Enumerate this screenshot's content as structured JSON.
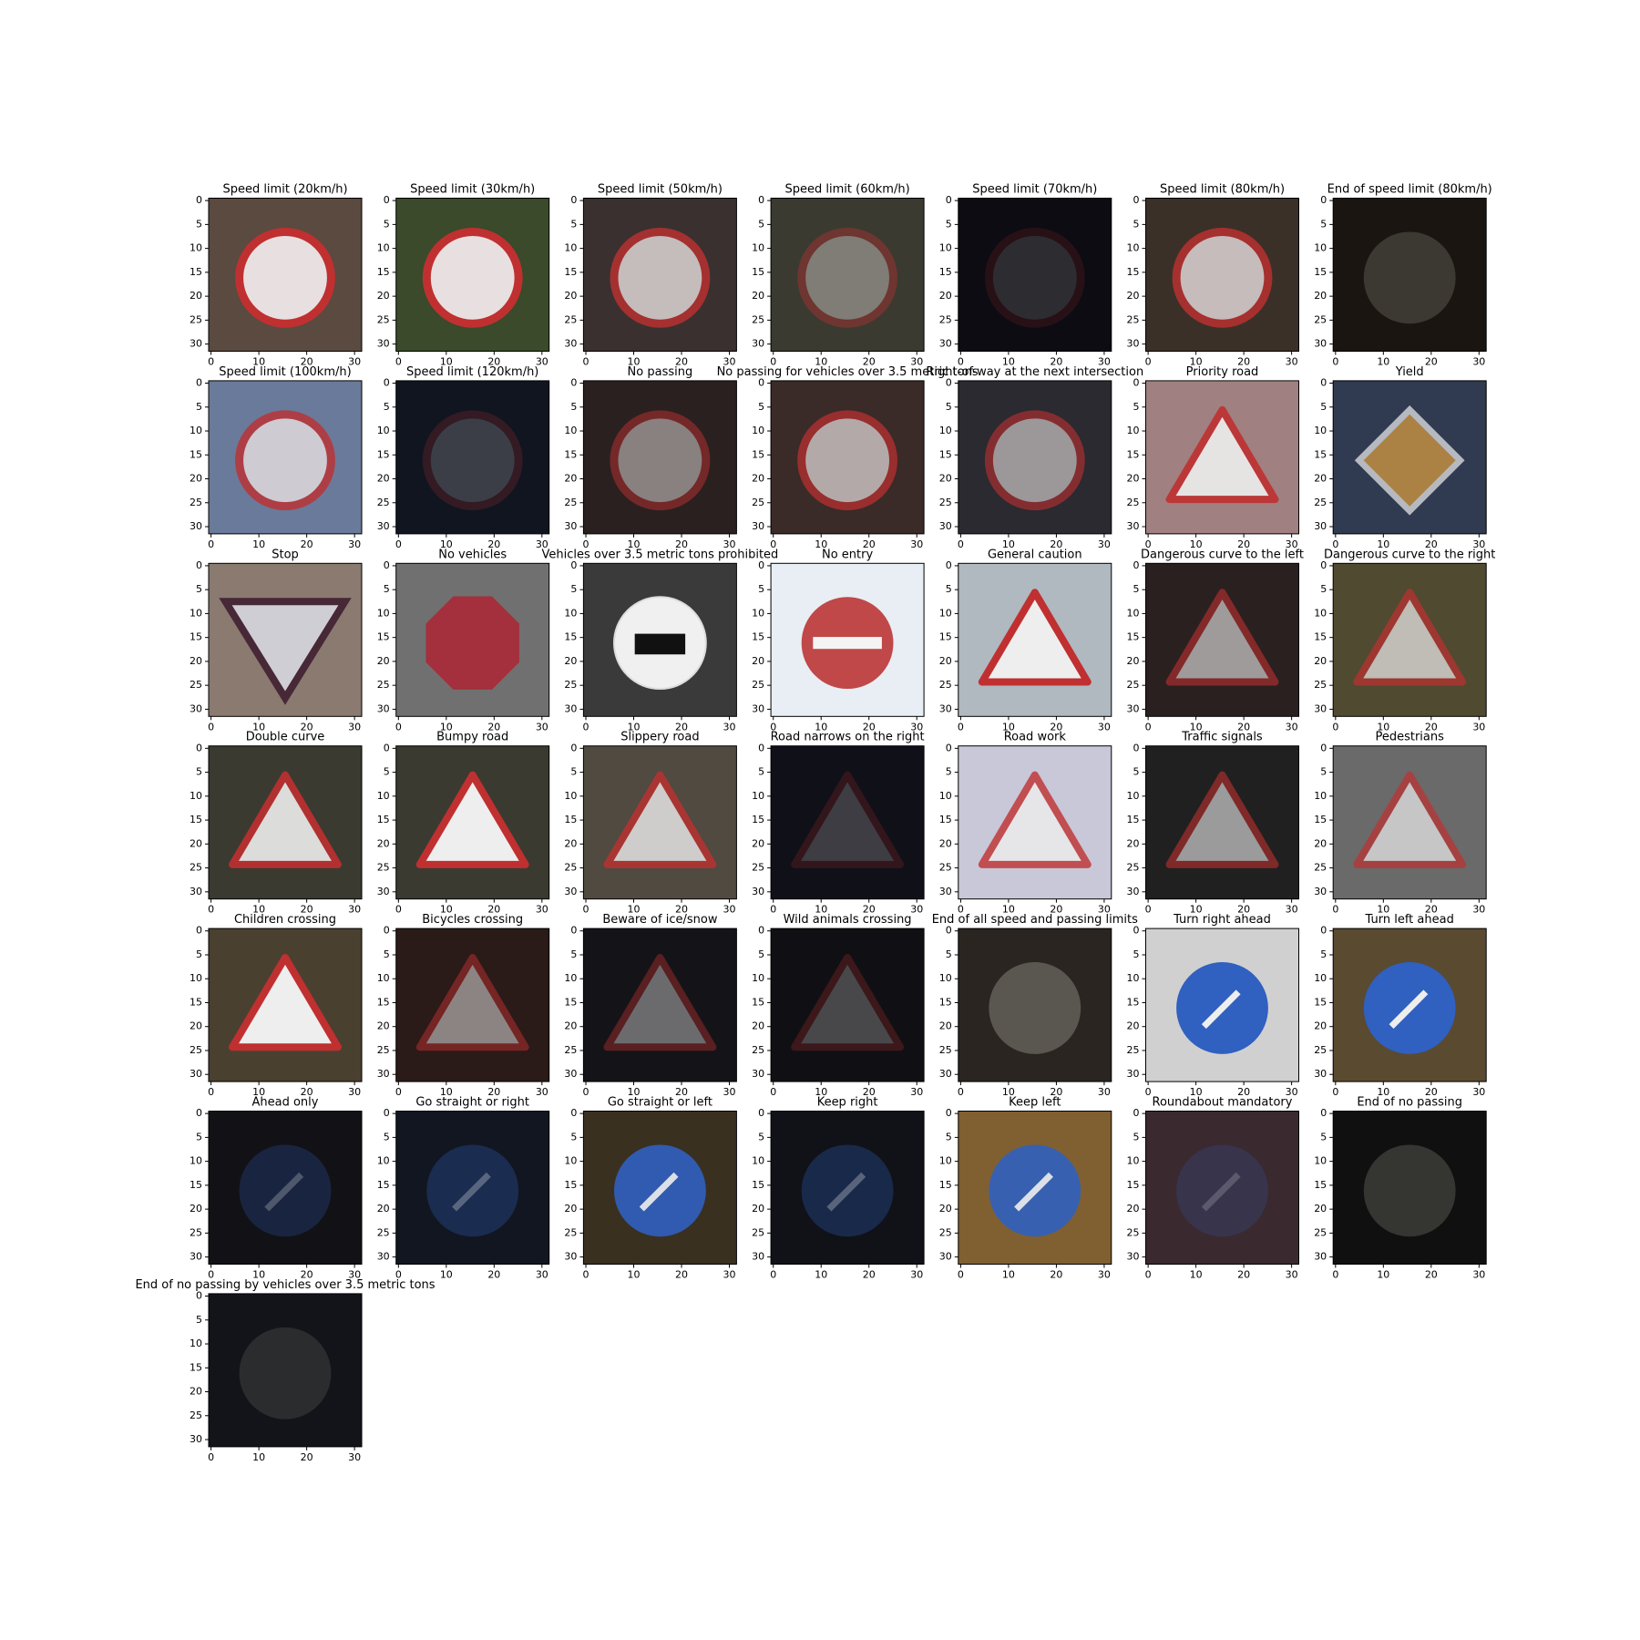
{
  "panels": [
    {
      "title": "Speed limit (20km/h)"
    },
    {
      "title": "Speed limit (30km/h)"
    },
    {
      "title": "Speed limit (50km/h)"
    },
    {
      "title": "Speed limit (60km/h)"
    },
    {
      "title": "Speed limit (70km/h)"
    },
    {
      "title": "Speed limit (80km/h)"
    },
    {
      "title": "End of speed limit (80km/h)"
    },
    {
      "title": "Speed limit (100km/h)"
    },
    {
      "title": "Speed limit (120km/h)"
    },
    {
      "title": "No passing"
    },
    {
      "title": "No passing for vehicles over 3.5 metric tons"
    },
    {
      "title": "Right-of-way at the next intersection"
    },
    {
      "title": "Priority road"
    },
    {
      "title": "Yield"
    },
    {
      "title": "Stop"
    },
    {
      "title": "No vehicles"
    },
    {
      "title": "Vehicles over 3.5 metric tons prohibited"
    },
    {
      "title": "No entry"
    },
    {
      "title": "General caution"
    },
    {
      "title": "Dangerous curve to the left"
    },
    {
      "title": "Dangerous curve to the right"
    },
    {
      "title": "Double curve"
    },
    {
      "title": "Bumpy road"
    },
    {
      "title": "Slippery road"
    },
    {
      "title": "Road narrows on the right"
    },
    {
      "title": "Road work"
    },
    {
      "title": "Traffic signals"
    },
    {
      "title": "Pedestrians"
    },
    {
      "title": "Children crossing"
    },
    {
      "title": "Bicycles crossing"
    },
    {
      "title": "Beware of ice/snow"
    },
    {
      "title": "Wild animals crossing"
    },
    {
      "title": "End of all speed and passing limits"
    },
    {
      "title": "Turn right ahead"
    },
    {
      "title": "Turn left ahead"
    },
    {
      "title": "Ahead only"
    },
    {
      "title": "Go straight or right"
    },
    {
      "title": "Go straight or left"
    },
    {
      "title": "Keep right"
    },
    {
      "title": "Keep left"
    },
    {
      "title": "Roundabout mandatory"
    },
    {
      "title": "End of no passing"
    },
    {
      "title": "End of no passing by vehicles over 3.5 metric tons"
    }
  ],
  "axes": {
    "xlim": [
      -0.5,
      31.5
    ],
    "ylim": [
      31.5,
      -0.5
    ],
    "xticks": [
      0,
      10,
      20,
      30
    ],
    "yticks": [
      0,
      5,
      10,
      15,
      20,
      25,
      30
    ]
  }
}
